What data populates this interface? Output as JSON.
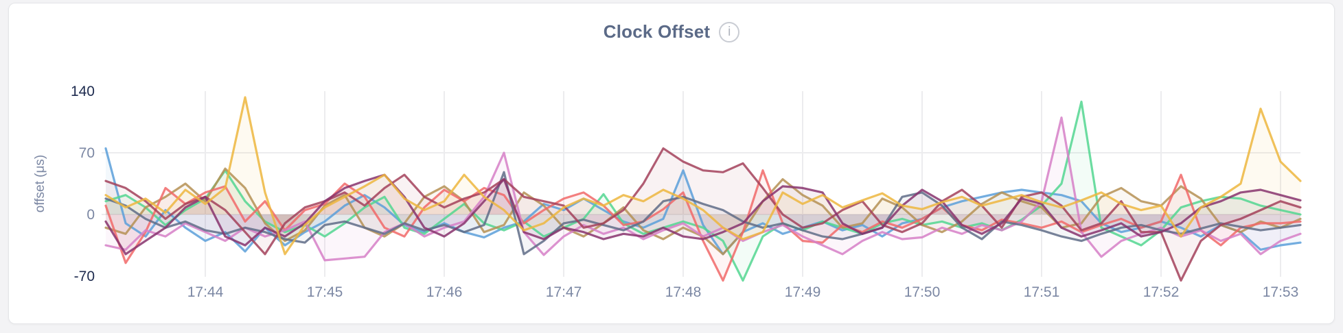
{
  "page": {
    "background_color": "#f3f3f5",
    "card_background": "#ffffff"
  },
  "header": {
    "title": "Clock Offset",
    "info_icon_glyph": "i"
  },
  "chart_data": {
    "type": "line",
    "title": "Clock Offset",
    "ylabel": "offset (μs)",
    "xlabel": "",
    "legend": "none",
    "grid": true,
    "ylim": [
      -70,
      140
    ],
    "x_start_time": "17:43:10",
    "x_interval_seconds": 10,
    "x_ticks": [
      "17:44",
      "17:45",
      "17:46",
      "17:47",
      "17:48",
      "17:49",
      "17:50",
      "17:51",
      "17:52",
      "17:53"
    ],
    "y_ticks": [
      {
        "label": "140",
        "value": 140,
        "emphasized": true
      },
      {
        "label": "70",
        "value": 70,
        "emphasized": false
      },
      {
        "label": "0",
        "value": 0,
        "emphasized": false
      },
      {
        "label": "-70",
        "value": -70,
        "emphasized": true
      }
    ],
    "h_gridlines_at": [
      70,
      0
    ],
    "v_gridlines": "at_each_x_tick",
    "grid_color": "#ececee",
    "axis_label_color": "#7b87a3",
    "axis_label_emphasis_color": "#1d2a4e",
    "line_opacity": 0.85,
    "fill_opacity": 0.07,
    "series": [
      {
        "id": "blue",
        "color": "#5B9FD9",
        "values": [
          75,
          -10,
          -25,
          5,
          -15,
          -30,
          -20,
          -42,
          -15,
          -35,
          -20,
          -8,
          10,
          22,
          8,
          -12,
          -20,
          -10,
          -20,
          -26,
          -15,
          -8,
          12,
          5,
          18,
          5,
          -8,
          -15,
          -5,
          50,
          -12,
          -45,
          -20,
          -10,
          -22,
          -15,
          -8,
          -18,
          -12,
          -25,
          -10,
          -5,
          8,
          15,
          20,
          25,
          28,
          25,
          22,
          15,
          -10,
          -20,
          -15,
          -8,
          -15,
          -25,
          -12,
          -20,
          -40,
          -35,
          -32
        ]
      },
      {
        "id": "green",
        "color": "#52D691",
        "values": [
          15,
          22,
          8,
          -12,
          5,
          18,
          50,
          15,
          -8,
          -20,
          -12,
          -25,
          -10,
          8,
          20,
          -15,
          -22,
          -5,
          12,
          -10,
          -18,
          -8,
          -25,
          -15,
          -5,
          23,
          -10,
          -22,
          -15,
          -8,
          -15,
          -30,
          -75,
          -25,
          -10,
          -18,
          -8,
          -15,
          -22,
          -10,
          -5,
          -12,
          -8,
          -15,
          -10,
          -18,
          -6,
          10,
          35,
          128,
          -15,
          -25,
          -35,
          -18,
          8,
          15,
          20,
          18,
          10,
          5,
          0
        ]
      },
      {
        "id": "khaki",
        "color": "#B59153",
        "values": [
          -15,
          -22,
          8,
          20,
          35,
          15,
          52,
          30,
          -10,
          -30,
          -18,
          10,
          22,
          -15,
          -25,
          -10,
          20,
          32,
          15,
          -20,
          -12,
          25,
          10,
          -15,
          -25,
          -10,
          8,
          -18,
          -28,
          -15,
          -25,
          -45,
          -20,
          15,
          40,
          22,
          10,
          -15,
          -10,
          18,
          8,
          -12,
          -20,
          -8,
          12,
          25,
          15,
          8,
          -15,
          -10,
          20,
          30,
          15,
          10,
          32,
          18,
          -12,
          -20,
          -8,
          -15,
          -5
        ]
      },
      {
        "id": "salmon",
        "color": "#F16969",
        "values": [
          10,
          -55,
          -20,
          30,
          12,
          25,
          32,
          -8,
          15,
          -18,
          5,
          12,
          35,
          20,
          -15,
          -25,
          8,
          28,
          15,
          30,
          22,
          -10,
          5,
          18,
          25,
          10,
          -12,
          -8,
          6,
          25,
          -30,
          -75,
          -20,
          50,
          -10,
          -30,
          -32,
          -12,
          -20,
          -8,
          -15,
          -5,
          8,
          -12,
          -18,
          -6,
          -10,
          -15,
          -8,
          -20,
          -12,
          -5,
          -15,
          -8,
          45,
          -18,
          -35,
          -15,
          -10,
          -10,
          -8
        ]
      },
      {
        "id": "orchid",
        "color": "#D67FC7",
        "values": [
          -35,
          -40,
          -18,
          -25,
          -10,
          -20,
          -30,
          -15,
          -25,
          -18,
          -8,
          -52,
          -50,
          -48,
          -20,
          -10,
          -25,
          -15,
          -8,
          20,
          70,
          -20,
          -46,
          -25,
          -12,
          -22,
          -15,
          -28,
          -18,
          -10,
          -25,
          -15,
          -30,
          -20,
          -12,
          -25,
          -35,
          -45,
          -30,
          -20,
          -28,
          -26,
          -15,
          -22,
          -12,
          -18,
          -8,
          15,
          110,
          -20,
          -48,
          -30,
          -22,
          -15,
          -25,
          -18,
          -30,
          -22,
          -45,
          -30,
          -22
        ]
      },
      {
        "id": "slate",
        "color": "#5F6C87",
        "values": [
          18,
          10,
          -5,
          -15,
          -8,
          -18,
          -22,
          -15,
          -20,
          -28,
          -32,
          -12,
          -8,
          -15,
          -22,
          -10,
          -18,
          -12,
          -20,
          -12,
          48,
          -45,
          -30,
          -10,
          -6,
          -12,
          -18,
          -8,
          15,
          20,
          12,
          5,
          -8,
          -15,
          -10,
          -18,
          -25,
          -28,
          -22,
          -15,
          20,
          25,
          10,
          -15,
          -28,
          -8,
          -12,
          -18,
          -25,
          -30,
          -22,
          -15,
          -12,
          -18,
          -22,
          -16,
          -10,
          -14,
          -18,
          -15,
          -12
        ]
      },
      {
        "id": "maroon",
        "color": "#A3415B",
        "values": [
          38,
          30,
          15,
          -5,
          12,
          20,
          5,
          -20,
          -45,
          -10,
          8,
          15,
          25,
          10,
          30,
          45,
          20,
          8,
          18,
          25,
          40,
          20,
          15,
          10,
          -15,
          -10,
          5,
          35,
          75,
          60,
          50,
          48,
          58,
          30,
          0,
          -15,
          -10,
          5,
          15,
          -12,
          -20,
          -10,
          15,
          28,
          10,
          -15,
          20,
          25,
          10,
          -18,
          -10,
          15,
          -20,
          -20,
          -75,
          -30,
          -12,
          -5,
          5,
          15,
          8
        ]
      },
      {
        "id": "plum",
        "color": "#87326D",
        "values": [
          -8,
          -45,
          -30,
          -15,
          8,
          20,
          -25,
          -35,
          -15,
          -25,
          -10,
          15,
          30,
          38,
          45,
          20,
          -15,
          -25,
          -10,
          15,
          40,
          -20,
          -28,
          -15,
          -20,
          -28,
          -22,
          -25,
          -15,
          -25,
          -28,
          -20,
          -10,
          15,
          32,
          30,
          25,
          -10,
          -22,
          -15,
          10,
          28,
          15,
          -12,
          -22,
          -10,
          18,
          12,
          -15,
          -25,
          -18,
          -10,
          -25,
          -20,
          -10,
          8,
          15,
          25,
          28,
          22,
          16
        ]
      },
      {
        "id": "gold",
        "color": "#EDB63E",
        "values": [
          22,
          8,
          18,
          2,
          28,
          12,
          30,
          133,
          25,
          -45,
          -12,
          8,
          20,
          32,
          45,
          18,
          5,
          15,
          45,
          20,
          5,
          -18,
          -10,
          8,
          18,
          10,
          22,
          15,
          28,
          18,
          5,
          -15,
          -28,
          -20,
          25,
          12,
          22,
          8,
          16,
          24,
          10,
          6,
          14,
          20,
          10,
          16,
          22,
          14,
          8,
          16,
          25,
          12,
          5,
          10,
          -25,
          8,
          20,
          35,
          120,
          60,
          38
        ]
      }
    ]
  }
}
